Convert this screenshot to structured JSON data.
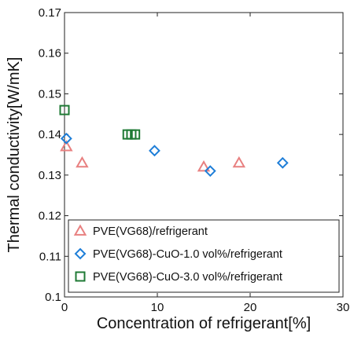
{
  "chart_data": {
    "type": "scatter",
    "title": "",
    "xlabel": "Concentration of refrigerant[%]",
    "ylabel": "Thermal conductivity[W/mK]",
    "xlim": [
      0,
      30
    ],
    "ylim": [
      0.1,
      0.17
    ],
    "xticks": [
      0,
      10,
      20,
      30
    ],
    "xtick_labels": [
      "0",
      "10",
      "20",
      "30"
    ],
    "yticks": [
      0.1,
      0.11,
      0.12,
      0.13,
      0.14,
      0.15,
      0.16,
      0.17
    ],
    "ytick_labels": [
      "0.1",
      "0.11",
      "0.12",
      "0.13",
      "0.14",
      "0.15",
      "0.16",
      "0.17"
    ],
    "grid": false,
    "legend_position": "bottom-left",
    "series": [
      {
        "name": "PVE(VG68)/refrigerant",
        "marker": "triangle",
        "color": "#e88080",
        "points": [
          {
            "x": 0.2,
            "y": 0.137
          },
          {
            "x": 1.9,
            "y": 0.133
          },
          {
            "x": 15.0,
            "y": 0.132
          },
          {
            "x": 18.8,
            "y": 0.133
          }
        ]
      },
      {
        "name": "PVE(VG68)-CuO-1.0 vol%/refrigerant",
        "marker": "diamond",
        "color": "#1e7ed8",
        "points": [
          {
            "x": 0.2,
            "y": 0.139
          },
          {
            "x": 9.7,
            "y": 0.136
          },
          {
            "x": 15.7,
            "y": 0.131
          },
          {
            "x": 23.5,
            "y": 0.133
          }
        ]
      },
      {
        "name": "PVE(VG68)-CuO-3.0 vol%/refrigerant",
        "marker": "square",
        "color": "#1f7a35",
        "points": [
          {
            "x": 0.0,
            "y": 0.146
          },
          {
            "x": 6.8,
            "y": 0.14
          },
          {
            "x": 7.2,
            "y": 0.14
          },
          {
            "x": 7.6,
            "y": 0.14
          }
        ]
      }
    ]
  }
}
